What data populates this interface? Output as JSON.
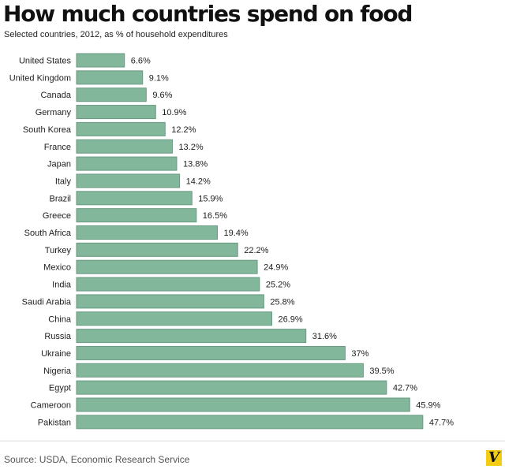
{
  "chart_data": {
    "type": "bar",
    "orientation": "horizontal",
    "title": "How much countries spend on food",
    "subtitle": "Selected countries, 2012, as % of household expenditures",
    "xlabel": "",
    "ylabel": "",
    "xlim": [
      0,
      50
    ],
    "grid": false,
    "legend": "none",
    "bar_color": "#82b79c",
    "categories": [
      "United States",
      "United Kingdom",
      "Canada",
      "Germany",
      "South Korea",
      "France",
      "Japan",
      "Italy",
      "Brazil",
      "Greece",
      "South Africa",
      "Turkey",
      "Mexico",
      "India",
      "Saudi Arabia",
      "China",
      "Russia",
      "Ukraine",
      "Nigeria",
      "Egypt",
      "Cameroon",
      "Pakistan"
    ],
    "values": [
      6.6,
      9.1,
      9.6,
      10.9,
      12.2,
      13.2,
      13.8,
      14.2,
      15.9,
      16.5,
      19.4,
      22.2,
      24.9,
      25.2,
      25.8,
      26.9,
      31.6,
      37,
      39.5,
      42.7,
      45.9,
      47.7
    ],
    "value_labels": [
      "6.6%",
      "9.1%",
      "9.6%",
      "10.9%",
      "12.2%",
      "13.2%",
      "13.8%",
      "14.2%",
      "15.9%",
      "16.5%",
      "19.4%",
      "22.2%",
      "24.9%",
      "25.2%",
      "25.8%",
      "26.9%",
      "31.6%",
      "37%",
      "39.5%",
      "42.7%",
      "45.9%",
      "47.7%"
    ]
  },
  "footer": {
    "source": "Source: USDA, Economic Research Service",
    "logo_text": "V",
    "logo_color": "#f2cd14"
  }
}
